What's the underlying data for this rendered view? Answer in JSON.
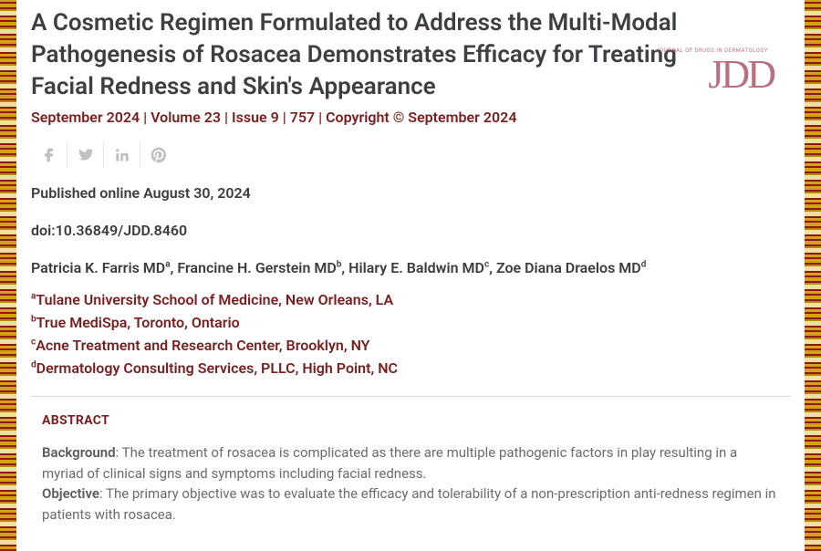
{
  "article": {
    "title": "A Cosmetic Regimen Formulated to Address the Multi-Modal Pathogenesis of Rosacea Demonstrates Efficacy for Treating Facial Redness and Skin's Appearance",
    "meta_line": "September 2024 | Volume 23 | Issue 9 | 757 | Copyright © September 2024",
    "published_online": "Published online August 30, 2024",
    "doi": "doi:10.36849/JDD.8460"
  },
  "logo": {
    "text": "JDD",
    "tagline": "JOURNAL OF DRUGS IN DERMATOLOGY"
  },
  "authors": [
    {
      "name": "Patricia K. Farris MD",
      "sup": "a"
    },
    {
      "name": "Francine H. Gerstein MD",
      "sup": "b"
    },
    {
      "name": "Hilary E. Baldwin MD",
      "sup": "c"
    },
    {
      "name": "Zoe Diana Draelos MD",
      "sup": "d"
    }
  ],
  "affiliations": [
    {
      "sup": "a",
      "text": "Tulane University School of Medicine, New Orleans, LA"
    },
    {
      "sup": "b",
      "text": "True MediSpa, Toronto, Ontario"
    },
    {
      "sup": "c",
      "text": "Acne Treatment and Research Center, Brooklyn, NY"
    },
    {
      "sup": "d",
      "text": "Dermatology Consulting Services, PLLC, High Point, NC"
    }
  ],
  "abstract": {
    "heading": "ABSTRACT",
    "sections": [
      {
        "label": "Background",
        "text": ": The treatment of rosacea is complicated as there are multiple pathogenic factors in play resulting in a myriad of clinical signs and symptoms including facial redness."
      },
      {
        "label": "Objective",
        "text": ": The primary objective was to evaluate the efficacy and tolerability of a non-prescription anti-redness regimen in patients with rosacea."
      }
    ]
  },
  "colors": {
    "title": "#3c4043",
    "accent": "#7a1f1f",
    "logo": "#b86f7f",
    "body_text": "#6b6b6b",
    "icon": "#c0c0c0",
    "divider": "#d8d8d8"
  },
  "social_icons": [
    "facebook",
    "twitter",
    "linkedin",
    "pinterest"
  ]
}
